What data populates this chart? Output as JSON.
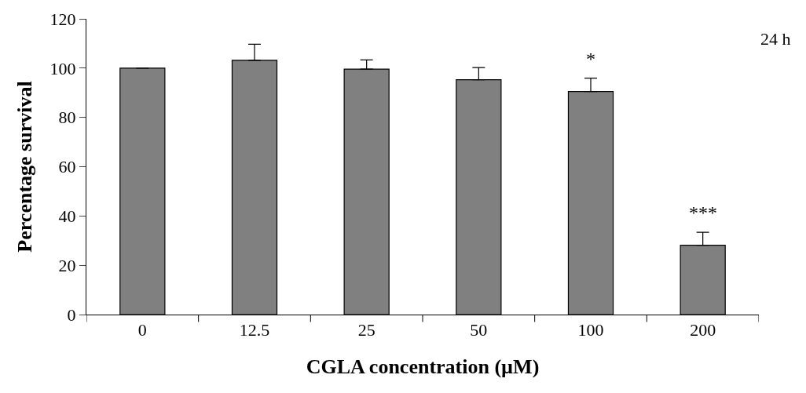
{
  "chart_data": {
    "type": "bar",
    "xlabel": "CGLA concentration (µM)",
    "ylabel": "Percentage survival",
    "categories": [
      "0",
      "12.5",
      "25",
      "50",
      "100",
      "200"
    ],
    "values": [
      100,
      103.2,
      99.6,
      95.3,
      90.5,
      28.1
    ],
    "errors": [
      null,
      6.5,
      3.7,
      4.9,
      5.4,
      5.3
    ],
    "value_labels": [
      null,
      null,
      null,
      null,
      "*",
      "***"
    ],
    "color": "#808080",
    "ylim": [
      0,
      120
    ],
    "yticks": [
      0,
      20,
      40,
      60,
      80,
      100,
      120
    ],
    "annotations": [
      "24 h"
    ]
  }
}
